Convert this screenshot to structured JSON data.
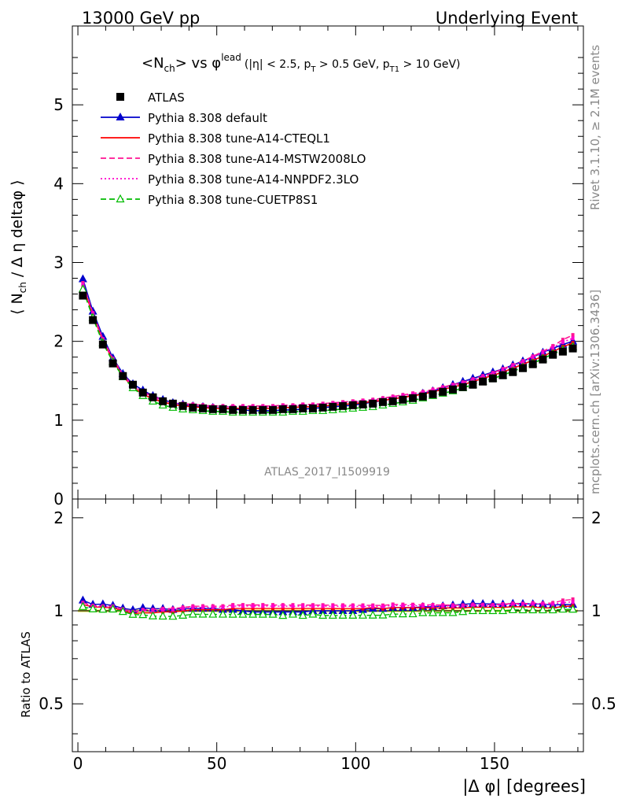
{
  "header": {
    "left": "13000 GeV pp",
    "right": "Underlying Event"
  },
  "side_labels": {
    "rivet": "Rivet 3.1.10, ≥ 2.1M events",
    "mcplots": "mcplots.cern.ch [arXiv:1306.3436]"
  },
  "plot_title": {
    "main": "<N",
    "sub_ch": "ch",
    "middle": "> vs φ",
    "sup": "lead",
    "cuts_1": "(|η| < 2.5, p",
    "cuts_sub1": "T",
    "cuts_2": " > 0.5 GeV, p",
    "cuts_sub2": "T1",
    "cuts_3": " > 10 GeV)"
  },
  "analysis_tag": "ATLAS_2017_I1509919",
  "chart_data": [
    {
      "type": "line",
      "xlabel": "|Δ φ| [degrees]",
      "ylabel": "⟨ N_ch / Δη deltaφ ⟩",
      "xlim": [
        -2,
        182
      ],
      "ylim": [
        0,
        6
      ],
      "x_ticks": [
        0,
        50,
        100,
        150
      ],
      "y_ticks": [
        0,
        1,
        2,
        3,
        4,
        5
      ],
      "legend_position": "top-left",
      "x": [
        1.8,
        5.4,
        9.0,
        12.6,
        16.2,
        19.8,
        23.4,
        27.0,
        30.6,
        34.2,
        37.8,
        41.4,
        45.0,
        48.6,
        52.2,
        55.8,
        59.4,
        63.0,
        66.6,
        70.2,
        73.8,
        77.4,
        81.0,
        84.6,
        88.2,
        91.8,
        95.4,
        99.0,
        102.6,
        106.2,
        109.8,
        113.4,
        117.0,
        120.6,
        124.2,
        127.8,
        131.4,
        135.0,
        138.6,
        142.2,
        145.8,
        149.4,
        153.0,
        156.6,
        160.2,
        163.8,
        167.4,
        171.0,
        174.6,
        178.2
      ],
      "series": [
        {
          "name": "ATLAS",
          "color": "#000000",
          "marker": "square",
          "values": [
            2.58,
            2.27,
            1.96,
            1.72,
            1.56,
            1.45,
            1.35,
            1.29,
            1.24,
            1.21,
            1.18,
            1.16,
            1.15,
            1.14,
            1.14,
            1.13,
            1.13,
            1.13,
            1.13,
            1.13,
            1.14,
            1.14,
            1.15,
            1.15,
            1.16,
            1.17,
            1.18,
            1.19,
            1.2,
            1.21,
            1.23,
            1.24,
            1.26,
            1.28,
            1.3,
            1.33,
            1.36,
            1.39,
            1.42,
            1.45,
            1.49,
            1.53,
            1.57,
            1.61,
            1.66,
            1.71,
            1.77,
            1.83,
            1.87,
            1.91
          ]
        },
        {
          "name": "Pythia 8.308 default",
          "color": "#0000cc",
          "marker": "triangle",
          "dash": "solid",
          "values": [
            2.79,
            2.38,
            2.06,
            1.79,
            1.59,
            1.46,
            1.38,
            1.31,
            1.26,
            1.22,
            1.2,
            1.18,
            1.17,
            1.16,
            1.15,
            1.14,
            1.13,
            1.12,
            1.12,
            1.12,
            1.13,
            1.13,
            1.14,
            1.15,
            1.16,
            1.17,
            1.18,
            1.19,
            1.21,
            1.23,
            1.25,
            1.27,
            1.29,
            1.31,
            1.34,
            1.37,
            1.41,
            1.45,
            1.49,
            1.53,
            1.57,
            1.61,
            1.65,
            1.7,
            1.75,
            1.8,
            1.86,
            1.91,
            1.96,
            2.0
          ]
        },
        {
          "name": "Pythia 8.308 tune-A14-CTEQL1",
          "color": "#ff0000",
          "marker": "none",
          "dash": "solid",
          "values": [
            2.7,
            2.34,
            2.01,
            1.76,
            1.56,
            1.42,
            1.33,
            1.27,
            1.23,
            1.2,
            1.18,
            1.17,
            1.16,
            1.15,
            1.15,
            1.15,
            1.15,
            1.15,
            1.15,
            1.15,
            1.16,
            1.16,
            1.17,
            1.17,
            1.18,
            1.19,
            1.2,
            1.21,
            1.22,
            1.24,
            1.25,
            1.27,
            1.29,
            1.31,
            1.33,
            1.36,
            1.39,
            1.42,
            1.45,
            1.49,
            1.53,
            1.57,
            1.61,
            1.66,
            1.71,
            1.76,
            1.81,
            1.87,
            1.93,
            1.98
          ]
        },
        {
          "name": "Pythia 8.308 tune-A14-MSTW2008LO",
          "color": "#ff1493",
          "marker": "none",
          "dash": "dashed",
          "values": [
            2.74,
            2.36,
            2.03,
            1.78,
            1.58,
            1.44,
            1.36,
            1.3,
            1.26,
            1.23,
            1.21,
            1.2,
            1.19,
            1.18,
            1.18,
            1.18,
            1.18,
            1.18,
            1.18,
            1.18,
            1.19,
            1.19,
            1.2,
            1.2,
            1.21,
            1.22,
            1.23,
            1.24,
            1.25,
            1.26,
            1.28,
            1.3,
            1.32,
            1.34,
            1.36,
            1.39,
            1.42,
            1.45,
            1.48,
            1.52,
            1.56,
            1.6,
            1.65,
            1.7,
            1.75,
            1.81,
            1.87,
            1.94,
            2.02,
            2.08
          ]
        },
        {
          "name": "Pythia 8.308 tune-A14-NNPDF2.3LO",
          "color": "#ff00cc",
          "marker": "none",
          "dash": "dotted",
          "values": [
            2.72,
            2.35,
            2.02,
            1.77,
            1.57,
            1.43,
            1.35,
            1.29,
            1.25,
            1.22,
            1.2,
            1.19,
            1.18,
            1.17,
            1.17,
            1.17,
            1.17,
            1.17,
            1.17,
            1.17,
            1.18,
            1.18,
            1.19,
            1.19,
            1.2,
            1.21,
            1.22,
            1.23,
            1.24,
            1.25,
            1.27,
            1.29,
            1.31,
            1.33,
            1.35,
            1.38,
            1.41,
            1.44,
            1.47,
            1.51,
            1.55,
            1.59,
            1.64,
            1.69,
            1.74,
            1.8,
            1.86,
            1.92,
            1.99,
            2.04
          ]
        },
        {
          "name": "Pythia 8.308 tune-CUETP8S1",
          "color": "#00bb00",
          "marker": "open-triangle",
          "dash": "dashed",
          "values": [
            2.66,
            2.3,
            1.98,
            1.74,
            1.55,
            1.41,
            1.31,
            1.24,
            1.19,
            1.16,
            1.14,
            1.13,
            1.12,
            1.11,
            1.11,
            1.1,
            1.1,
            1.1,
            1.1,
            1.1,
            1.1,
            1.11,
            1.11,
            1.12,
            1.12,
            1.13,
            1.14,
            1.15,
            1.16,
            1.17,
            1.19,
            1.21,
            1.23,
            1.25,
            1.28,
            1.31,
            1.34,
            1.37,
            1.41,
            1.45,
            1.49,
            1.53,
            1.57,
            1.62,
            1.67,
            1.72,
            1.78,
            1.84,
            1.89,
            1.93
          ]
        }
      ]
    },
    {
      "type": "line",
      "xlabel": "|Δ φ| [degrees]",
      "ylabel": "Ratio to ATLAS",
      "xlim": [
        -2,
        182
      ],
      "ylim": [
        0.35,
        2.3
      ],
      "y_scale": "log",
      "y_ticks": [
        0.5,
        1,
        2
      ],
      "band_color": "#ffff66"
    }
  ]
}
